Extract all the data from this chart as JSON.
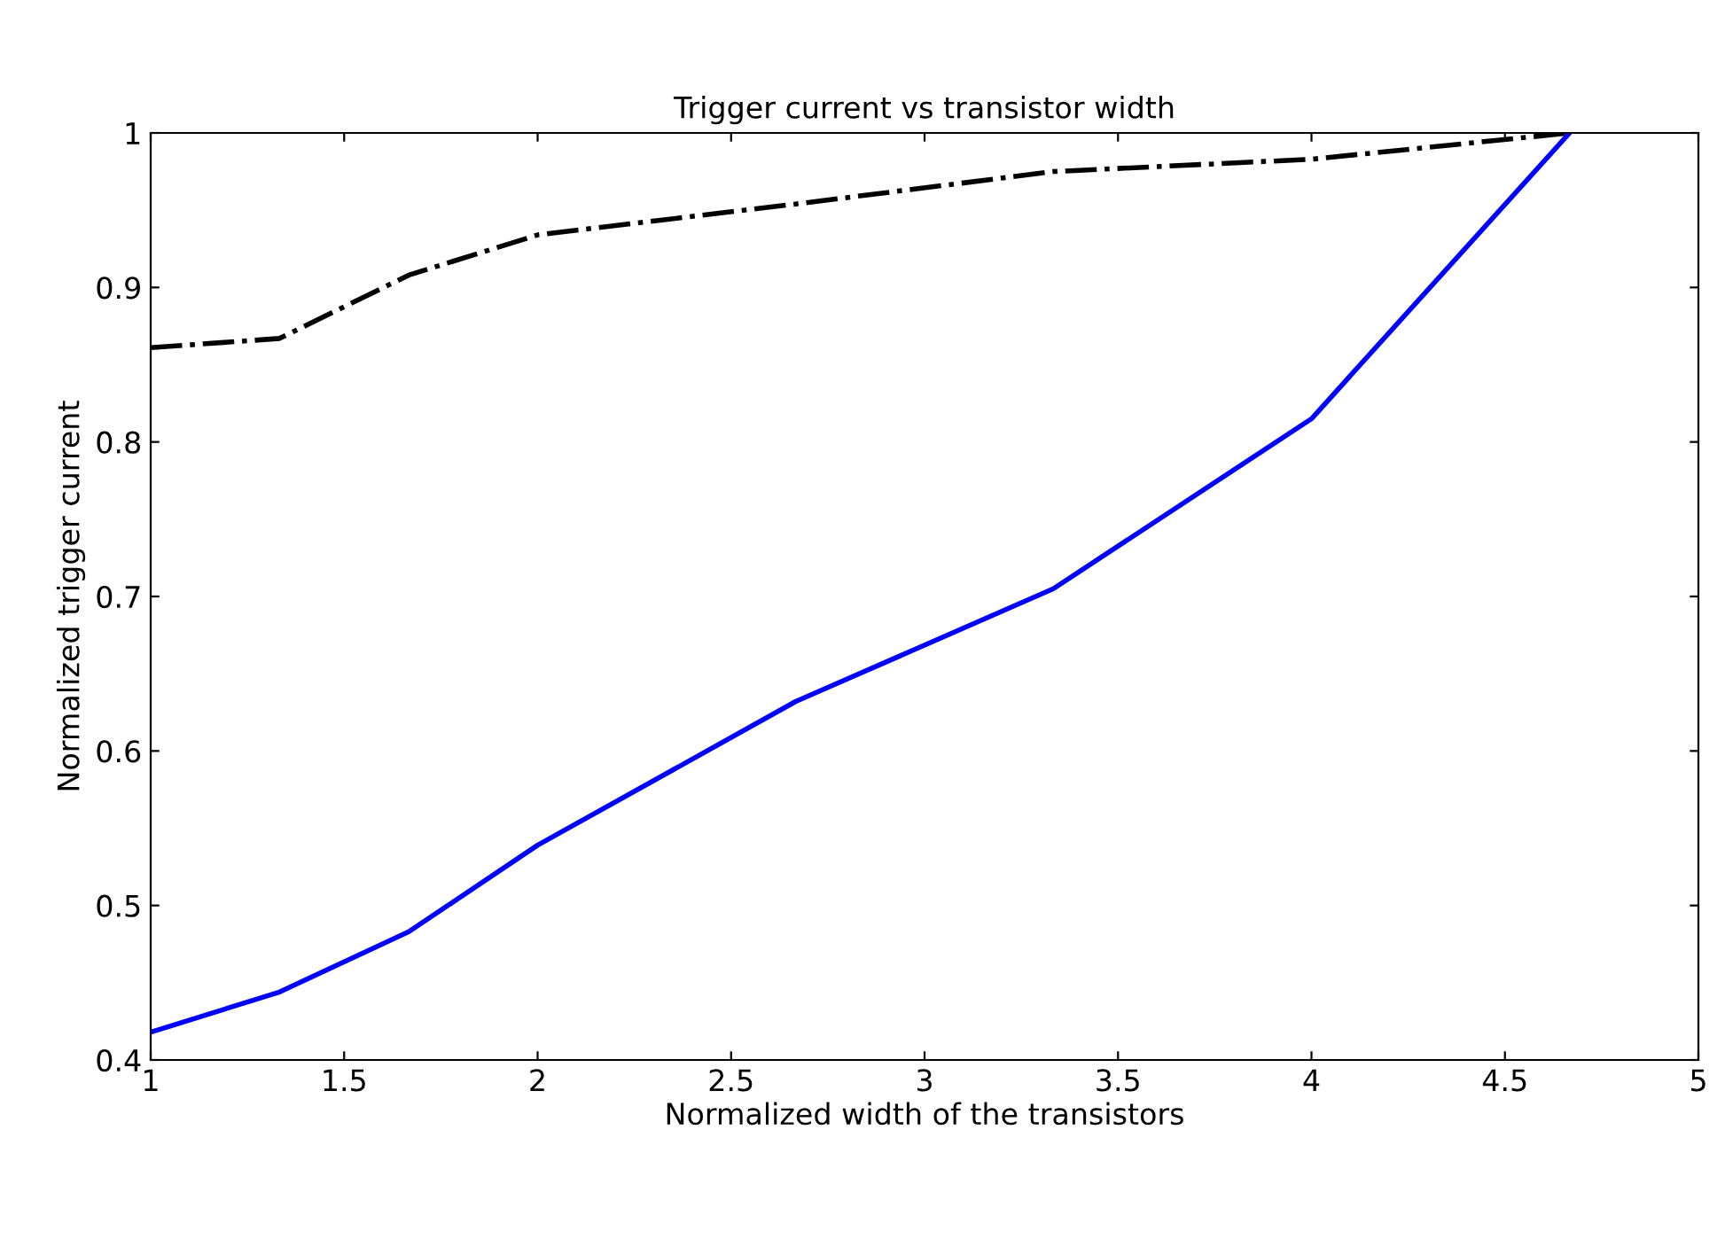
{
  "chart_data": {
    "type": "line",
    "title": "Trigger current vs transistor width",
    "xlabel": "Normalized width of the transistors",
    "ylabel": "Normalized trigger current",
    "x": [
      1,
      1.333,
      1.667,
      2,
      2.667,
      3.333,
      4,
      4.667
    ],
    "series": [
      {
        "color": "#000000",
        "line_style": "dashdot",
        "values": [
          0.861,
          0.867,
          0.908,
          0.934,
          0.954,
          0.975,
          0.983,
          1.0
        ]
      },
      {
        "color": "#0000ff",
        "line_style": "solid",
        "values": [
          0.418,
          0.444,
          0.483,
          0.539,
          0.632,
          0.705,
          0.815,
          1.0
        ]
      }
    ],
    "xlim": [
      1,
      5
    ],
    "xticks": [
      1,
      1.5,
      2,
      2.5,
      3,
      3.5,
      4,
      4.5,
      5
    ],
    "ylim": [
      0.4,
      1
    ],
    "yticks": [
      0.4,
      0.5,
      0.6,
      0.7,
      0.8,
      0.9,
      1
    ],
    "grid": false,
    "legend": false
  }
}
